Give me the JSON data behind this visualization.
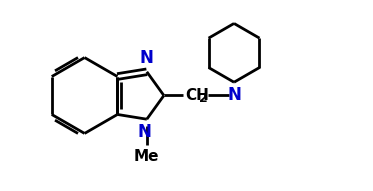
{
  "bg_color": "#ffffff",
  "bond_color": "#000000",
  "N_color": "#0000cc",
  "label_color": "#000000",
  "line_width": 2.0,
  "font_size_N": 12,
  "font_size_label": 11,
  "font_size_sub": 9,
  "fig_width": 3.73,
  "fig_height": 1.91,
  "dpi": 100,
  "xlim": [
    -0.3,
    7.2
  ],
  "ylim": [
    0.2,
    4.2
  ]
}
